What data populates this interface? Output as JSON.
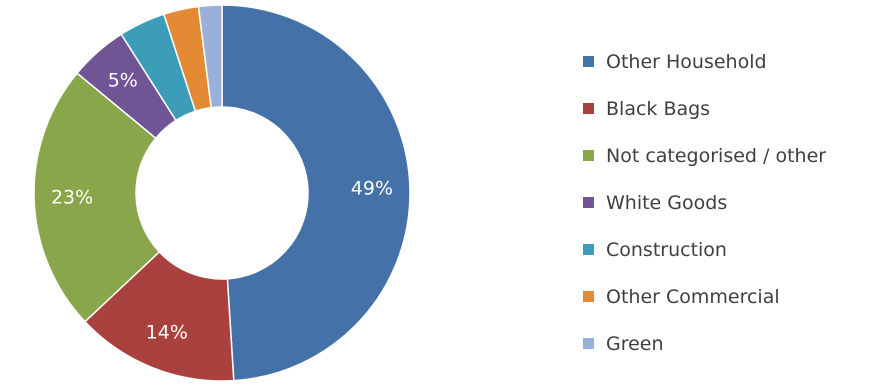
{
  "chart_data": {
    "type": "pie",
    "title": "",
    "categories": [
      "Other Household",
      "Black Bags",
      "Not categorised / other",
      "White Goods",
      "Construction",
      "Other Commercial",
      "Green"
    ],
    "values": [
      49,
      14,
      23,
      5,
      4,
      3,
      2
    ],
    "data_labels": [
      "49%",
      "14%",
      "23%",
      "5%",
      "",
      "",
      ""
    ],
    "colors": [
      "#4571A9",
      "#A9413E",
      "#8AA64A",
      "#6F5594",
      "#3B9DB8",
      "#E48A34",
      "#99B0D8"
    ],
    "donut": true,
    "legend": "right"
  }
}
